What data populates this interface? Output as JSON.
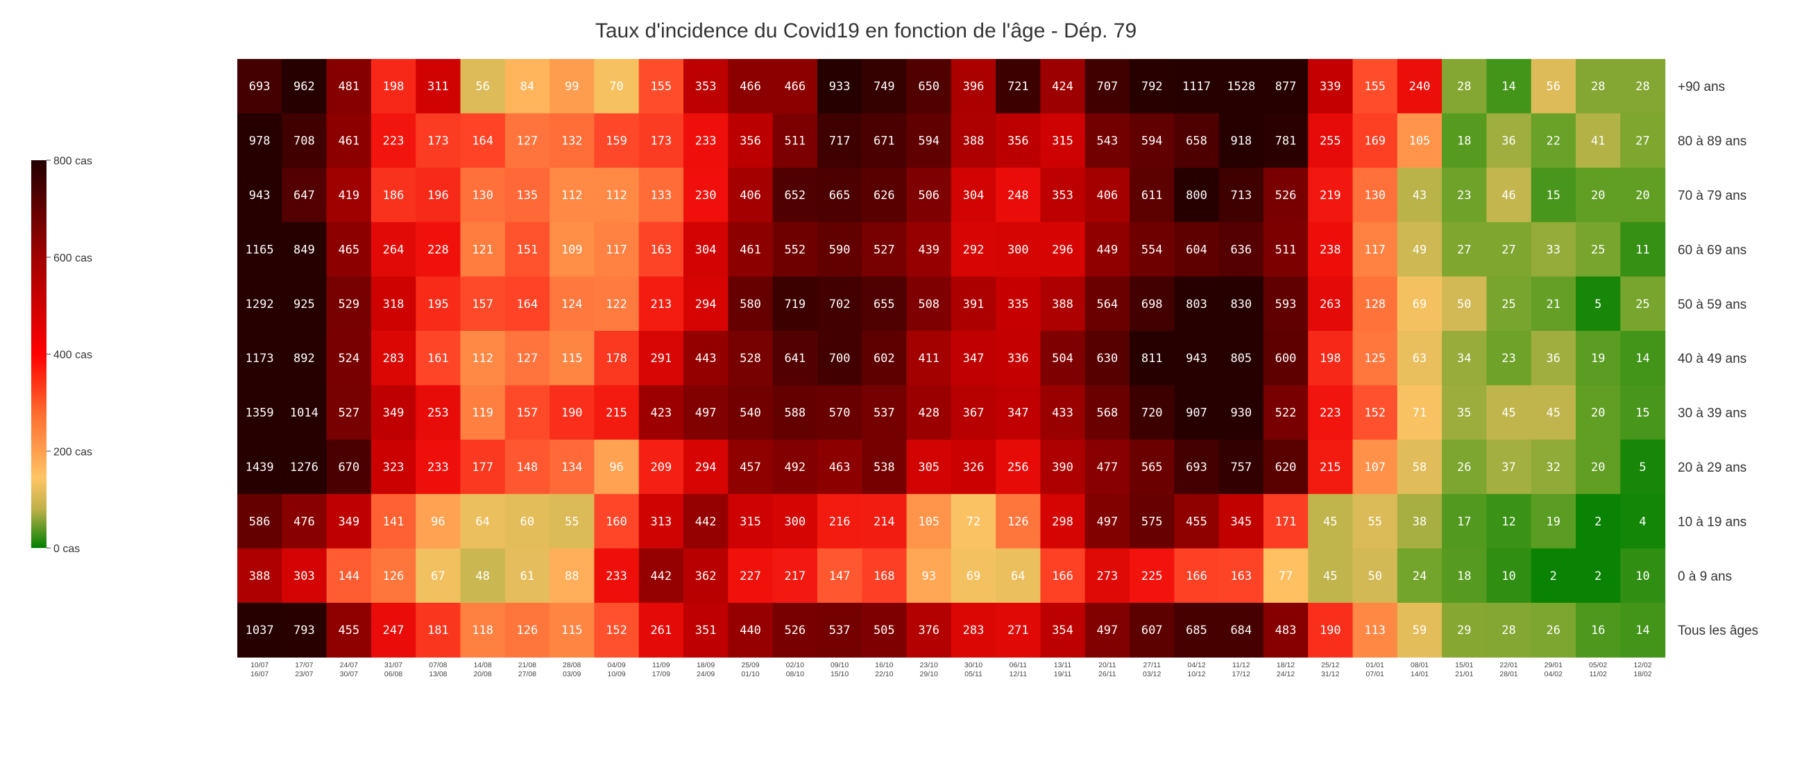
{
  "chart_data": {
    "type": "heatmap",
    "title": "Taux d'incidence du Covid19 en fonction de l'âge - Dép. 79",
    "colorbar": {
      "labels": [
        "0 cas",
        "200 cas",
        "400 cas",
        "600 cas",
        "800 cas"
      ],
      "ticks": [
        0,
        200,
        400,
        600,
        800
      ],
      "range": [
        0,
        800
      ]
    },
    "rows": [
      "+90 ans",
      "80 à 89 ans",
      "70 à 79 ans",
      "60 à 69 ans",
      "50 à 59 ans",
      "40 à 49 ans",
      "30 à 39 ans",
      "20 à 29 ans",
      "10 à 19 ans",
      "0 à 9 ans",
      "Tous les âges"
    ],
    "columns": [
      [
        "10/07",
        "16/07"
      ],
      [
        "17/07",
        "23/07"
      ],
      [
        "24/07",
        "30/07"
      ],
      [
        "31/07",
        "06/08"
      ],
      [
        "07/08",
        "13/08"
      ],
      [
        "14/08",
        "20/08"
      ],
      [
        "21/08",
        "27/08"
      ],
      [
        "28/08",
        "03/09"
      ],
      [
        "04/09",
        "10/09"
      ],
      [
        "11/09",
        "17/09"
      ],
      [
        "18/09",
        "24/09"
      ],
      [
        "25/09",
        "01/10"
      ],
      [
        "02/10",
        "08/10"
      ],
      [
        "09/10",
        "15/10"
      ],
      [
        "16/10",
        "22/10"
      ],
      [
        "23/10",
        "29/10"
      ],
      [
        "30/10",
        "05/11"
      ],
      [
        "06/11",
        "12/11"
      ],
      [
        "13/11",
        "19/11"
      ],
      [
        "20/11",
        "26/11"
      ],
      [
        "27/11",
        "03/12"
      ],
      [
        "04/12",
        "10/12"
      ],
      [
        "11/12",
        "17/12"
      ],
      [
        "18/12",
        "24/12"
      ],
      [
        "25/12",
        "31/12"
      ],
      [
        "01/01",
        "07/01"
      ],
      [
        "08/01",
        "14/01"
      ],
      [
        "15/01",
        "21/01"
      ],
      [
        "22/01",
        "28/01"
      ],
      [
        "29/01",
        "04/02"
      ],
      [
        "05/02",
        "11/02"
      ],
      [
        "12/02",
        "18/02"
      ]
    ],
    "values": [
      [
        693,
        962,
        481,
        198,
        311,
        56,
        84,
        99,
        70,
        155,
        353,
        466,
        466,
        933,
        749,
        650,
        396,
        721,
        424,
        707,
        792,
        1117,
        1528,
        877,
        339,
        155,
        240,
        28,
        14,
        56,
        28,
        28
      ],
      [
        978,
        708,
        461,
        223,
        173,
        164,
        127,
        132,
        159,
        173,
        233,
        356,
        511,
        717,
        671,
        594,
        388,
        356,
        315,
        543,
        594,
        658,
        918,
        781,
        255,
        169,
        105,
        18,
        36,
        22,
        41,
        27
      ],
      [
        943,
        647,
        419,
        186,
        196,
        130,
        135,
        112,
        112,
        133,
        230,
        406,
        652,
        665,
        626,
        506,
        304,
        248,
        353,
        406,
        611,
        800,
        713,
        526,
        219,
        130,
        43,
        23,
        46,
        15,
        20,
        20
      ],
      [
        1165,
        849,
        465,
        264,
        228,
        121,
        151,
        109,
        117,
        163,
        304,
        461,
        552,
        590,
        527,
        439,
        292,
        300,
        296,
        449,
        554,
        604,
        636,
        511,
        238,
        117,
        49,
        27,
        27,
        33,
        25,
        11
      ],
      [
        1292,
        925,
        529,
        318,
        195,
        157,
        164,
        124,
        122,
        213,
        294,
        580,
        719,
        702,
        655,
        508,
        391,
        335,
        388,
        564,
        698,
        803,
        830,
        593,
        263,
        128,
        69,
        50,
        25,
        21,
        5,
        25
      ],
      [
        1173,
        892,
        524,
        283,
        161,
        112,
        127,
        115,
        178,
        291,
        443,
        528,
        641,
        700,
        602,
        411,
        347,
        336,
        504,
        630,
        811,
        943,
        805,
        600,
        198,
        125,
        63,
        34,
        23,
        36,
        19,
        14
      ],
      [
        1359,
        1014,
        527,
        349,
        253,
        119,
        157,
        190,
        215,
        423,
        497,
        540,
        588,
        570,
        537,
        428,
        367,
        347,
        433,
        568,
        720,
        907,
        930,
        522,
        223,
        152,
        71,
        35,
        45,
        45,
        20,
        15
      ],
      [
        1439,
        1276,
        670,
        323,
        233,
        177,
        148,
        134,
        96,
        209,
        294,
        457,
        492,
        463,
        538,
        305,
        326,
        256,
        390,
        477,
        565,
        693,
        757,
        620,
        215,
        107,
        58,
        26,
        37,
        32,
        20,
        5
      ],
      [
        586,
        476,
        349,
        141,
        96,
        64,
        60,
        55,
        160,
        313,
        442,
        315,
        300,
        216,
        214,
        105,
        72,
        126,
        298,
        497,
        575,
        455,
        345,
        171,
        45,
        55,
        38,
        17,
        12,
        19,
        2,
        4
      ],
      [
        388,
        303,
        144,
        126,
        67,
        48,
        61,
        88,
        233,
        442,
        362,
        227,
        217,
        147,
        168,
        93,
        69,
        64,
        166,
        273,
        225,
        166,
        163,
        77,
        45,
        50,
        24,
        18,
        10,
        2,
        2,
        10
      ],
      [
        1037,
        793,
        455,
        247,
        181,
        118,
        126,
        115,
        152,
        261,
        351,
        440,
        526,
        537,
        505,
        376,
        283,
        271,
        354,
        497,
        607,
        685,
        684,
        483,
        190,
        113,
        59,
        29,
        28,
        26,
        16,
        14
      ]
    ]
  }
}
